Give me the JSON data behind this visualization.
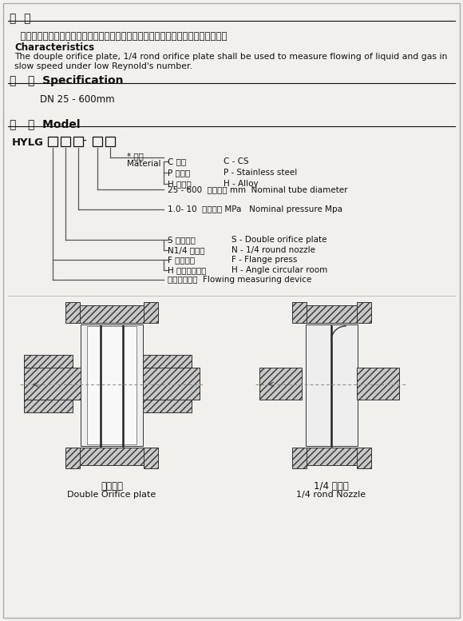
{
  "bg_color": "#f2f0ec",
  "border_color": "#999999",
  "text_color": "#111111",
  "line_color": "#555555",
  "title1_cn": "特  点",
  "body1_cn": "  适用低雷诺数状态下各种流量、广泛应用于各种流速较低的液体、气体的流量测量。",
  "char_title": "Characteristics",
  "char_body1": "The douple orifice plate, 1/4 rond orifice plate shall be used to measure flowing of liquid and gas in",
  "char_body2": "slow speed under low Reynold's number.",
  "spec_title": "规   格  Specification",
  "spec_body": "DN 25 - 600mm",
  "model_title": "型   号  Model",
  "model_code": "HYLG",
  "mat_label_cn": "* 材质",
  "mat_label_en": "Material",
  "mat_c_cn": "C 碳钢",
  "mat_c_en": "C - CS",
  "mat_p_cn": "P 不锈钢",
  "mat_p_en": "P - Stainless steel",
  "mat_h_cn": "H 合金钢",
  "mat_h_en": "H - Alloy",
  "diam_label_cn": "25 - 600  公称管径 mm",
  "diam_label_en": "Nominal tube diameter",
  "press_label_cn": "1.0- 10  公称压力 MPa",
  "press_label_en": "Nominal pressure Mpa",
  "type_s_cn": "S 双重孔板",
  "type_s_en": "S - Double orifice plate",
  "type_n_cn": "N1/4 圆喷嘴",
  "type_n_en": "N - 1/4 round nozzle",
  "tap_f_cn": "F 法兰取压",
  "tap_f_en": "F - Flange press",
  "tap_h_cn": "H 角接环室取压",
  "tap_h_en": "H - Angle circular room",
  "device_cn": "流量测量装置",
  "device_en": "Flowing measuring device",
  "fig1_cn": "双重孔板",
  "fig1_en": "Double Orifice plate",
  "fig2_cn": "1/4 圆喷嘴",
  "fig2_en": "1/4 rond Nozzle"
}
